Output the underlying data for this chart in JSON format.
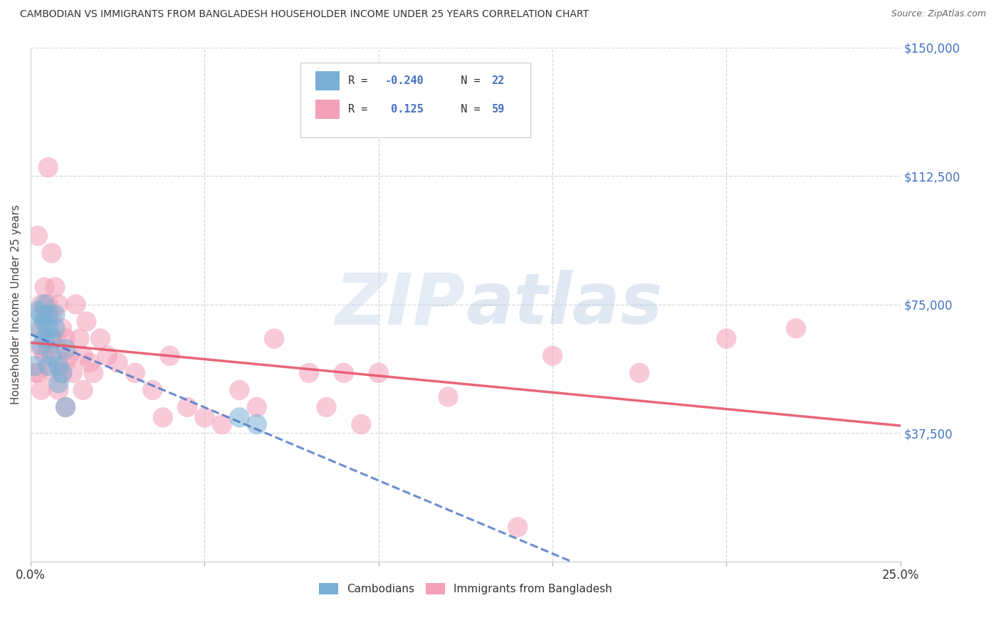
{
  "title": "CAMBODIAN VS IMMIGRANTS FROM BANGLADESH HOUSEHOLDER INCOME UNDER 25 YEARS CORRELATION CHART",
  "source": "Source: ZipAtlas.com",
  "ylabel": "Householder Income Under 25 years",
  "xlim": [
    0,
    0.25
  ],
  "ylim": [
    0,
    150000
  ],
  "cambodian_color": "#7bafd4",
  "bangladesh_color": "#f4a0b8",
  "cambodian_line_color": "#4472c4",
  "bangladesh_line_color": "#e8546a",
  "background_color": "#ffffff",
  "grid_color": "#d8d8d8",
  "cam_x": [
    0.001,
    0.002,
    0.002,
    0.003,
    0.003,
    0.004,
    0.004,
    0.004,
    0.005,
    0.005,
    0.005,
    0.006,
    0.006,
    0.007,
    0.007,
    0.008,
    0.008,
    0.009,
    0.01,
    0.01,
    0.06,
    0.065
  ],
  "cam_y": [
    57000,
    73000,
    68000,
    72000,
    63000,
    75000,
    70000,
    65000,
    72000,
    68000,
    57000,
    65000,
    60000,
    72000,
    68000,
    57000,
    52000,
    55000,
    62000,
    45000,
    42000,
    40000
  ],
  "ban_x": [
    0.001,
    0.002,
    0.002,
    0.003,
    0.003,
    0.003,
    0.003,
    0.004,
    0.004,
    0.004,
    0.005,
    0.005,
    0.005,
    0.006,
    0.006,
    0.006,
    0.007,
    0.007,
    0.008,
    0.008,
    0.008,
    0.009,
    0.009,
    0.01,
    0.01,
    0.01,
    0.011,
    0.012,
    0.013,
    0.014,
    0.015,
    0.015,
    0.016,
    0.017,
    0.018,
    0.02,
    0.022,
    0.025,
    0.03,
    0.035,
    0.038,
    0.04,
    0.045,
    0.05,
    0.055,
    0.06,
    0.065,
    0.07,
    0.08,
    0.085,
    0.09,
    0.095,
    0.1,
    0.12,
    0.14,
    0.15,
    0.175,
    0.2,
    0.22
  ],
  "ban_y": [
    55000,
    95000,
    55000,
    75000,
    68000,
    62000,
    50000,
    80000,
    72000,
    60000,
    115000,
    75000,
    62000,
    90000,
    72000,
    55000,
    80000,
    65000,
    75000,
    62000,
    50000,
    68000,
    55000,
    65000,
    58000,
    45000,
    60000,
    55000,
    75000,
    65000,
    60000,
    50000,
    70000,
    58000,
    55000,
    65000,
    60000,
    58000,
    55000,
    50000,
    42000,
    60000,
    45000,
    42000,
    40000,
    50000,
    45000,
    65000,
    55000,
    45000,
    55000,
    40000,
    55000,
    48000,
    10000,
    60000,
    55000,
    65000,
    68000
  ]
}
